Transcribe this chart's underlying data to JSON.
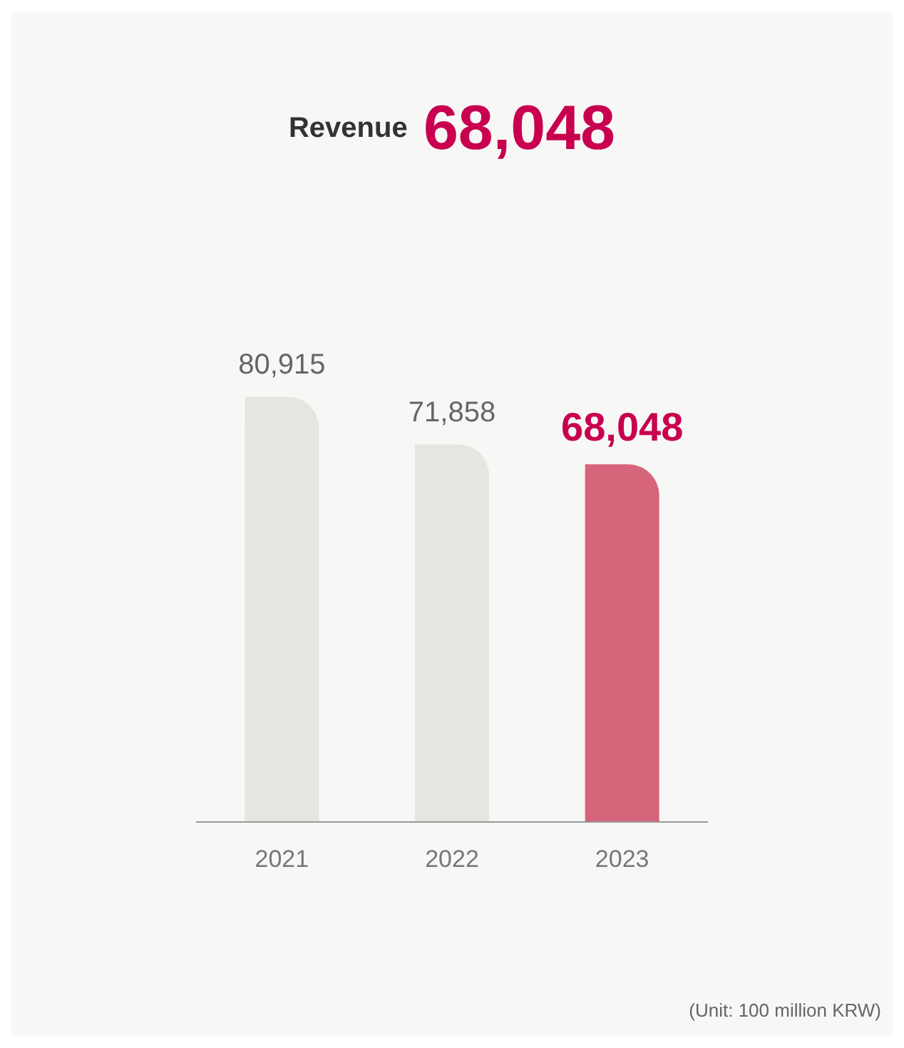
{
  "chart_data": {
    "type": "bar",
    "title": "Revenue",
    "subtitle": "68,048",
    "categories": [
      "2021",
      "2022",
      "2023"
    ],
    "values": [
      80915,
      71858,
      68048
    ],
    "value_labels": [
      "80,915",
      "71,858",
      "68,048"
    ],
    "colors": [
      "#e6e5e0",
      "#e6e5e0",
      "#d6647a"
    ],
    "annotations": [
      "(Unit: 100 million KRW)"
    ]
  }
}
